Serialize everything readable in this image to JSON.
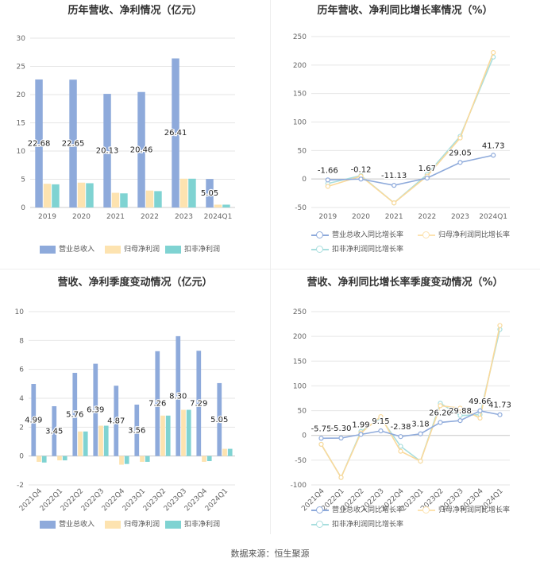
{
  "colors": {
    "revenue": "#8eaadb",
    "net_profit": "#fde3b0",
    "deducted_profit": "#7fd3d2",
    "grid": "#e6e6e6",
    "axis_text": "#666666"
  },
  "source": "数据来源：恒生聚源",
  "chart_data": [
    {
      "type": "bar",
      "title": "历年营收、净利情况（亿元）",
      "categories": [
        "2019",
        "2020",
        "2021",
        "2022",
        "2023",
        "2024Q1"
      ],
      "ylim": [
        0,
        30
      ],
      "yticks": [
        0,
        5,
        10,
        15,
        20,
        25,
        30
      ],
      "grid": true,
      "legend_position": "bottom",
      "series": [
        {
          "name": "营业总收入",
          "values": [
            22.68,
            22.65,
            20.13,
            20.46,
            26.41,
            5.05
          ],
          "labels": [
            "22.68",
            "22.65",
            "20.13",
            "20.46",
            "26.41",
            "5.05"
          ]
        },
        {
          "name": "归母净利润",
          "values": [
            4.2,
            4.4,
            2.6,
            3.0,
            5.1,
            0.5
          ]
        },
        {
          "name": "扣非净利润",
          "values": [
            4.1,
            4.3,
            2.5,
            2.9,
            5.1,
            0.5
          ]
        }
      ]
    },
    {
      "type": "line",
      "title": "历年营收、净利同比增长率情况（%）",
      "categories": [
        "2019",
        "2020",
        "2021",
        "2022",
        "2023",
        "2024Q1"
      ],
      "ylim": [
        -50,
        250
      ],
      "yticks": [
        -50,
        0,
        50,
        100,
        150,
        200,
        250
      ],
      "grid": true,
      "legend_position": "bottom",
      "series": [
        {
          "name": "营业总收入同比增长率",
          "values": [
            -1.66,
            -0.12,
            -11.13,
            1.67,
            29.05,
            41.73
          ],
          "labels": [
            "-1.66",
            "-0.12",
            "-11.13",
            "1.67",
            "29.05",
            "41.73"
          ]
        },
        {
          "name": "归母净利润同比增长率",
          "values": [
            -13,
            5,
            -42,
            5,
            72,
            222
          ]
        },
        {
          "name": "扣非净利润同比增长率",
          "values": [
            -8,
            6,
            -42,
            8,
            75,
            214
          ]
        }
      ]
    },
    {
      "type": "bar",
      "title": "营收、净利季度变动情况（亿元）",
      "categories": [
        "2021Q4",
        "2022Q1",
        "2022Q2",
        "2022Q3",
        "2022Q4",
        "2023Q1",
        "2023Q2",
        "2023Q3",
        "2023Q4",
        "2024Q1"
      ],
      "ylim": [
        -2,
        10
      ],
      "yticks": [
        -2,
        0,
        2,
        4,
        6,
        8,
        10
      ],
      "grid": true,
      "legend_position": "bottom",
      "series": [
        {
          "name": "营业总收入",
          "values": [
            4.99,
            3.45,
            5.76,
            6.39,
            4.87,
            3.56,
            7.26,
            8.3,
            7.29,
            5.05
          ],
          "labels": [
            "4.99",
            "3.45",
            "5.76",
            "6.39",
            "4.87",
            "3.56",
            "7.26",
            "8.30",
            "7.29",
            "5.05"
          ]
        },
        {
          "name": "归母净利润",
          "values": [
            -0.4,
            -0.3,
            1.7,
            2.1,
            -0.6,
            -0.4,
            2.8,
            3.2,
            -0.4,
            0.5
          ]
        },
        {
          "name": "扣非净利润",
          "values": [
            -0.45,
            -0.3,
            1.7,
            2.1,
            -0.55,
            -0.4,
            2.8,
            3.2,
            -0.35,
            0.5
          ]
        }
      ]
    },
    {
      "type": "line",
      "title": "营收、净利同比增长率季度变动情况（%）",
      "categories": [
        "2021Q4",
        "2022Q1",
        "2022Q2",
        "2022Q3",
        "2022Q4",
        "2023Q1",
        "2023Q2",
        "2023Q3",
        "2023Q4",
        "2024Q1"
      ],
      "ylim": [
        -100,
        250
      ],
      "yticks": [
        -100,
        -50,
        0,
        50,
        100,
        150,
        200,
        250
      ],
      "grid": true,
      "legend_position": "bottom",
      "series": [
        {
          "name": "营业总收入同比增长率",
          "values": [
            -5.75,
            -5.3,
            1.99,
            9.15,
            -2.38,
            3.18,
            26.2,
            29.88,
            49.66,
            41.73
          ],
          "labels": [
            "-5.75",
            "-5.30",
            "1.99",
            "9.15",
            "-2.38",
            "3.18",
            "26.20",
            "29.88",
            "49.66",
            "41.73"
          ]
        },
        {
          "name": "归母净利润同比增长率",
          "values": [
            -18,
            -85,
            5,
            38,
            -32,
            -52,
            60,
            55,
            35,
            222
          ]
        },
        {
          "name": "扣非净利润同比增长率",
          "values": [
            -18,
            -85,
            8,
            35,
            -22,
            -52,
            65,
            40,
            42,
            214
          ]
        }
      ]
    }
  ]
}
